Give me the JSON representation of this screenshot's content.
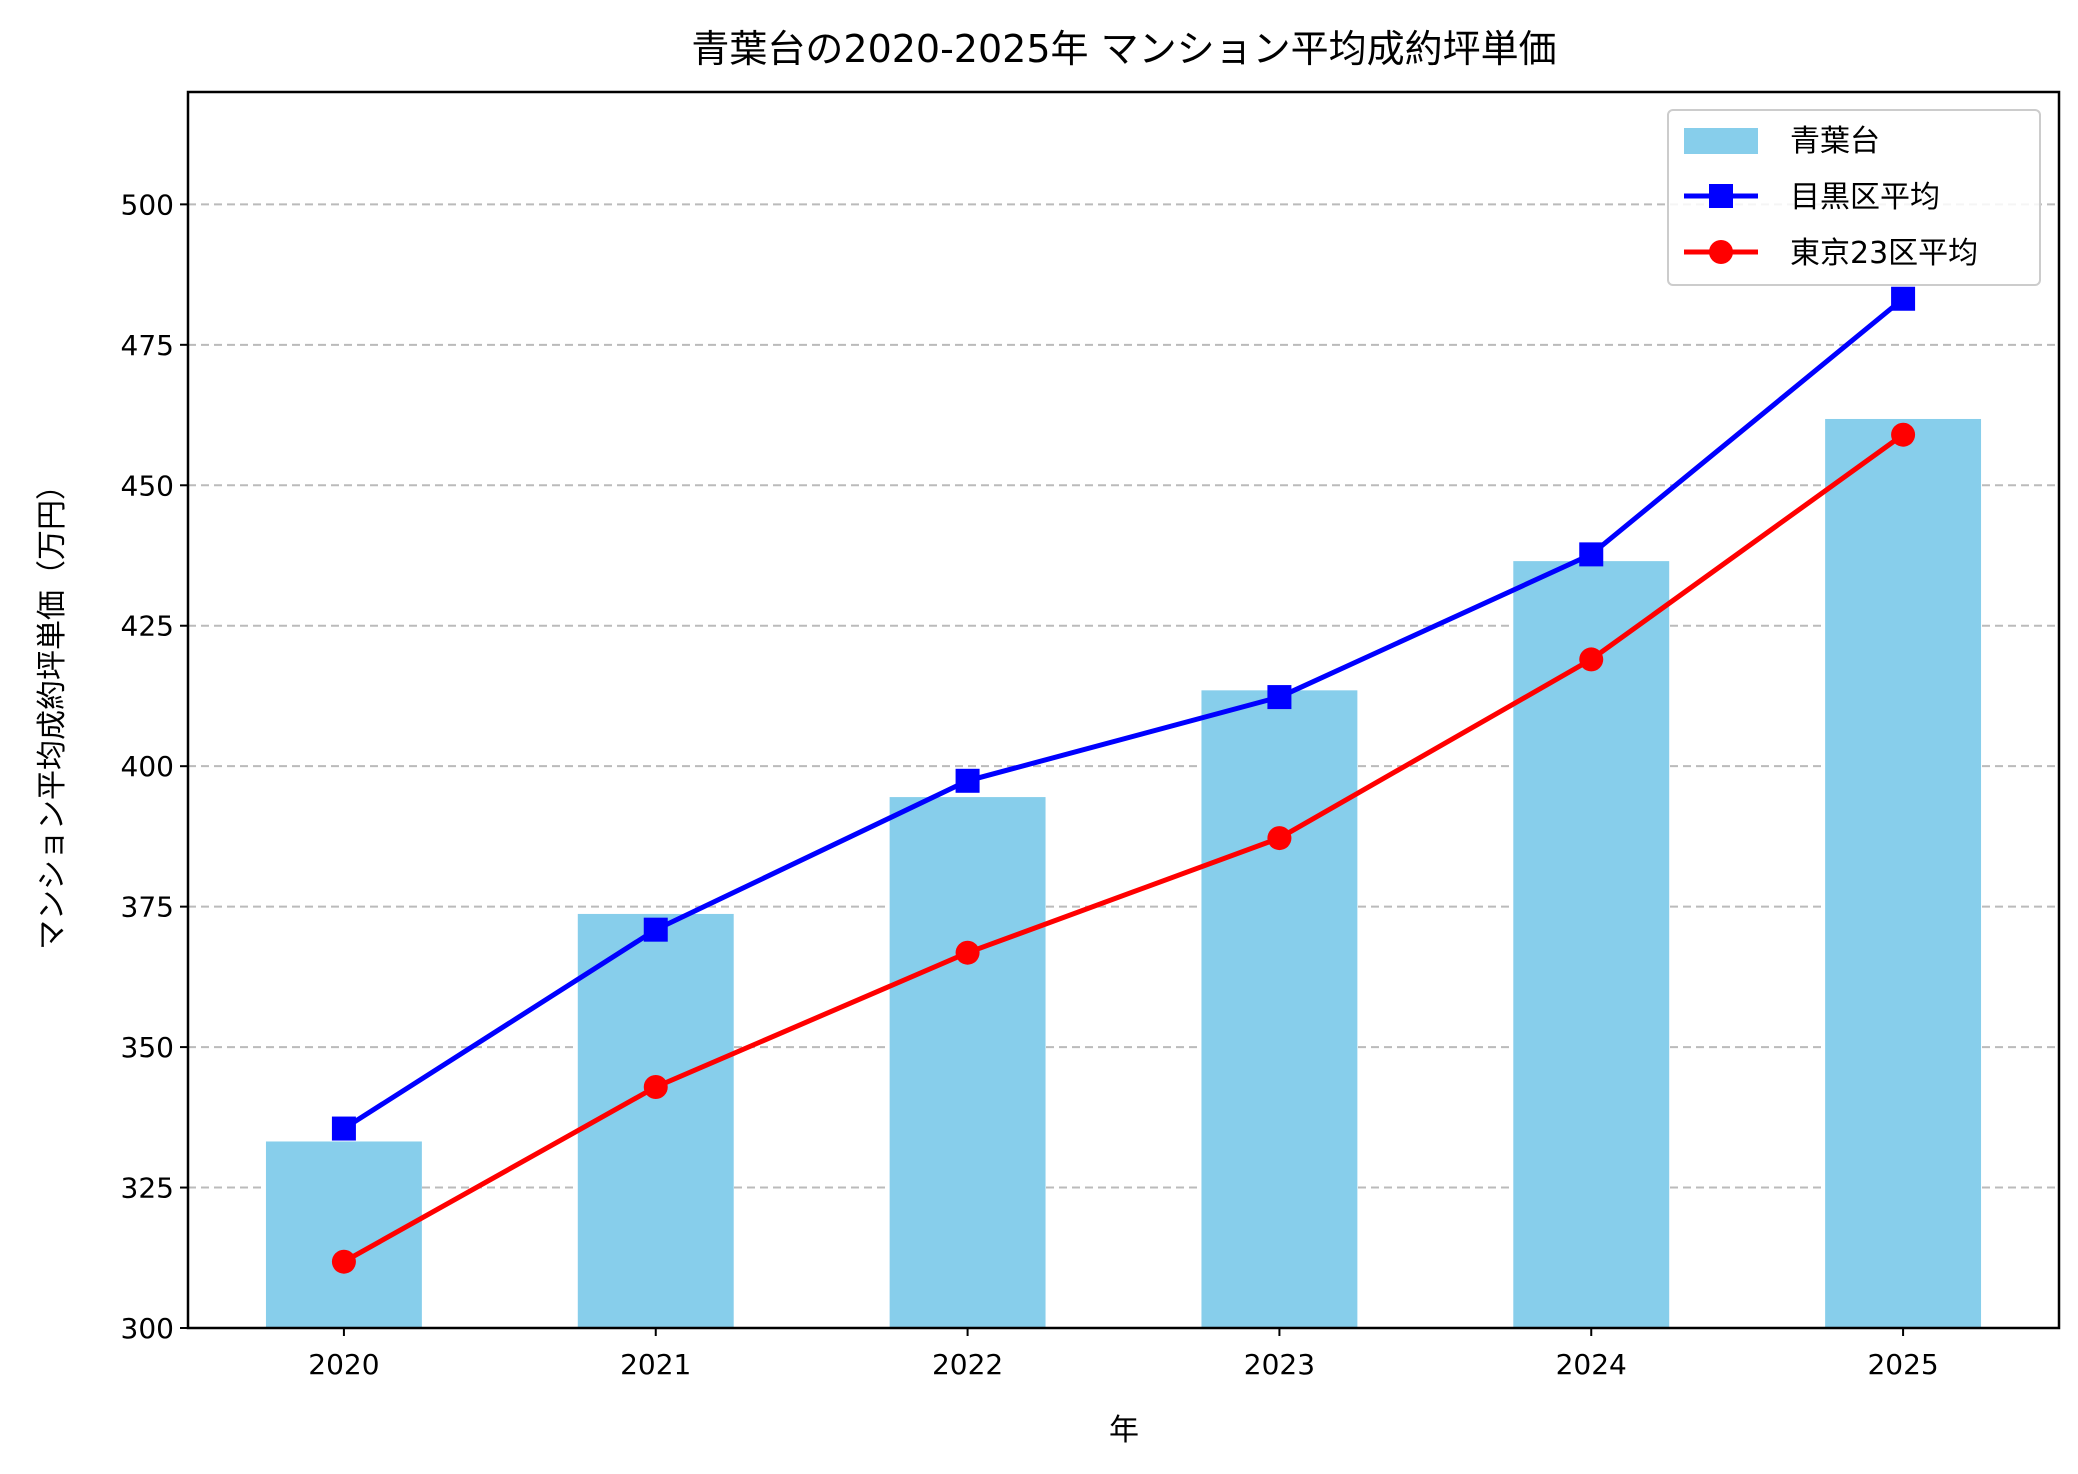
{
  "chart_data": {
    "type": "bar+line",
    "title": "青葉台の2020-2025年 マンション平均成約坪単価",
    "xlabel": "年",
    "ylabel": "マンション平均成約坪単価（万円）",
    "categories": [
      "2020",
      "2021",
      "2022",
      "2023",
      "2024",
      "2025"
    ],
    "ylim": [
      300,
      520
    ],
    "yticks": [
      300,
      325,
      350,
      375,
      400,
      425,
      450,
      475,
      500
    ],
    "grid": "y dashed",
    "legend": "top-right",
    "series": [
      {
        "name": "青葉台",
        "type": "bar",
        "color": "#87CEEB",
        "values": [
          333.2,
          373.7,
          394.5,
          413.5,
          436.5,
          461.8
        ]
      },
      {
        "name": "目黒区平均",
        "type": "line",
        "marker": "square",
        "color": "#0000FF",
        "values": [
          335.5,
          370.9,
          397.4,
          412.3,
          437.7,
          483.2
        ]
      },
      {
        "name": "東京23区平均",
        "type": "line",
        "marker": "circle",
        "color": "#FF0000",
        "values": [
          311.8,
          342.9,
          366.8,
          387.2,
          419.0,
          459.0
        ]
      }
    ]
  }
}
